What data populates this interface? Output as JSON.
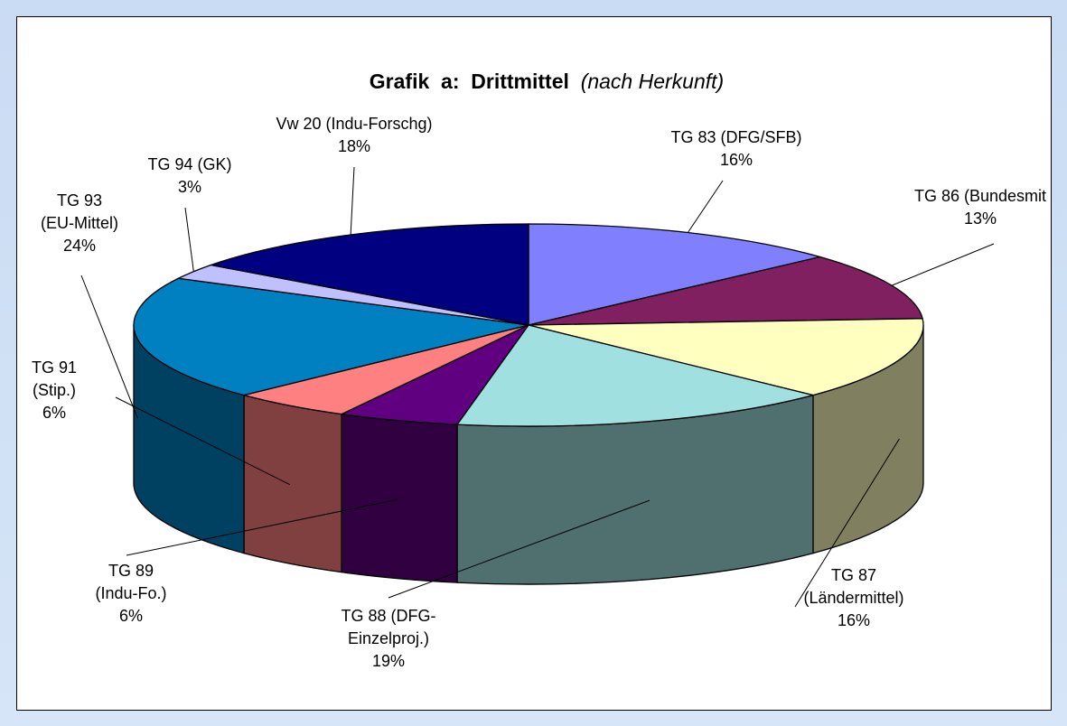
{
  "chart_data": {
    "type": "pie3d",
    "title": "Grafik  a:  Drittmittel",
    "subtitle": "(nach Herkunft)",
    "categories": [
      "TG 83 (DFG/SFB)",
      "TG 86 (Bundesmit",
      "TG 87\n(Ländermittel)",
      "TG 88 (DFG-\nEinzelproj.)",
      "TG 89\n(Indu-Fo.)",
      "TG 91\n(Stip.)",
      "TG 93\n(EU-Mittel)",
      "TG 94 (GK)",
      "Vw 20 (Indu-Forschg)"
    ],
    "values": [
      16,
      13,
      16,
      19,
      6,
      6,
      24,
      3,
      18
    ],
    "value_labels": [
      "16%",
      "13%",
      "16%",
      "19%",
      "6%",
      "6%",
      "24%",
      "3%",
      "18%"
    ],
    "colors": [
      "#8080ff",
      "#802060",
      "#ffffc0",
      "#a0e0e0",
      "#600080",
      "#ff8080",
      "#0080c0",
      "#c0c0ff",
      "#000080"
    ]
  }
}
